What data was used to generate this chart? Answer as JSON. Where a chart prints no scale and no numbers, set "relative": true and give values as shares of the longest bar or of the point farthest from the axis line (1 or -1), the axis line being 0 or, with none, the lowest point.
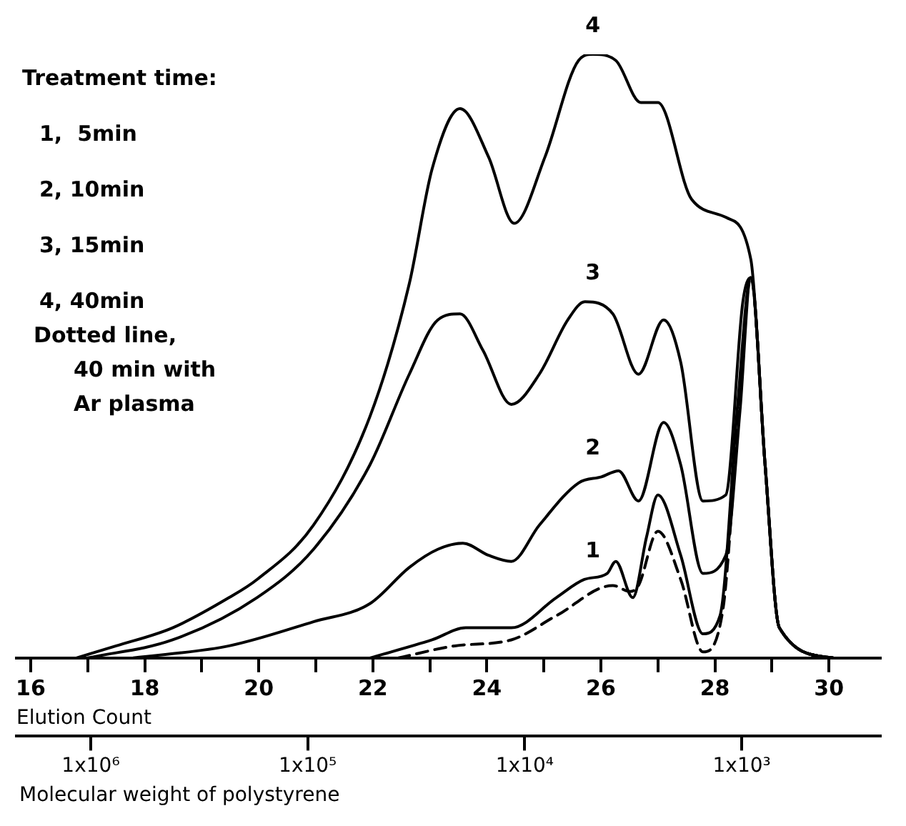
{
  "chart_data": {
    "type": "line",
    "relative": true,
    "xlabel": "Elution Count",
    "x2label": "Molecular weight of polystyrene",
    "xlim": [
      15.75,
      30.9
    ],
    "xticks": [
      16,
      {
        "value": 17,
        "label": null
      },
      18,
      {
        "value": 19,
        "label": null
      },
      20,
      {
        "value": 21,
        "label": null
      },
      22,
      {
        "value": 23,
        "label": null
      },
      24,
      {
        "value": 25,
        "label": null
      },
      26,
      {
        "value": 27,
        "label": null
      },
      28,
      {
        "value": 29,
        "label": null
      },
      30
    ],
    "x2lim": [
      2200000,
      230
    ],
    "log": "x2",
    "x2ticks": [
      {
        "value": 1000000,
        "label": "1x10⁶"
      },
      {
        "value": 100000,
        "label": "1x10⁵"
      },
      {
        "value": 10000,
        "label": "1x10⁴"
      },
      {
        "value": 1000,
        "label": "1x10³"
      }
    ],
    "annotations": [
      "Treatment time:",
      "1,  5min",
      "2, 10min",
      "3, 15min",
      "4, 40min",
      "Dotted line,",
      "40 min with",
      "Ar plasma"
    ],
    "grid": false,
    "legend": false,
    "marker": "none",
    "line_style": "solid",
    "series": [
      {
        "name": "1",
        "color": "#000000",
        "x": [
          21.95,
          23.04,
          23.63,
          24.43,
          25.22,
          25.71,
          26.11,
          26.26,
          26.56,
          26.8,
          27.0,
          27.4,
          27.79,
          28.09,
          28.39,
          28.63,
          28.88,
          29.13,
          30.07
        ],
        "values": [
          0,
          0.03,
          0.05,
          0.05,
          0.1,
          0.13,
          0.14,
          0.16,
          0.1,
          0.2,
          0.27,
          0.17,
          0.04,
          0.07,
          0.41,
          0.63,
          0.32,
          0.05,
          0
        ]
      },
      {
        "name": "2",
        "color": "#000000",
        "x": [
          17.8,
          19.48,
          20.96,
          21.95,
          22.64,
          23.14,
          23.58,
          24.03,
          24.43,
          24.92,
          25.61,
          26.01,
          26.31,
          26.66,
          27.1,
          27.4,
          27.79,
          28.19,
          28.44,
          28.63,
          28.88,
          29.13,
          30.07
        ],
        "values": [
          0,
          0.02,
          0.06,
          0.09,
          0.15,
          0.18,
          0.19,
          0.17,
          0.16,
          0.22,
          0.29,
          0.3,
          0.31,
          0.26,
          0.39,
          0.32,
          0.14,
          0.17,
          0.41,
          0.63,
          0.32,
          0.05,
          0
        ]
      },
      {
        "name": "3",
        "color": "#000000",
        "x": [
          17.0,
          18.49,
          19.97,
          20.96,
          21.95,
          22.64,
          23.14,
          23.53,
          23.93,
          24.43,
          24.92,
          25.42,
          25.72,
          26.21,
          26.66,
          27.1,
          27.4,
          27.79,
          28.19,
          28.49,
          28.63,
          28.88,
          29.13,
          30.07
        ],
        "values": [
          0,
          0.03,
          0.1,
          0.18,
          0.32,
          0.47,
          0.56,
          0.57,
          0.51,
          0.42,
          0.47,
          0.56,
          0.59,
          0.57,
          0.47,
          0.56,
          0.49,
          0.26,
          0.27,
          0.59,
          0.63,
          0.32,
          0.05,
          0
        ]
      },
      {
        "name": "4",
        "color": "#000000",
        "x": [
          16.8,
          17.5,
          18.49,
          19.48,
          19.97,
          20.96,
          21.95,
          22.64,
          23.04,
          23.53,
          24.03,
          24.48,
          25.02,
          25.61,
          25.86,
          26.26,
          26.7,
          27.0,
          27.59,
          28.19,
          28.63,
          28.88,
          29.13,
          30.07
        ],
        "values": [
          0,
          0.02,
          0.05,
          0.1,
          0.13,
          0.22,
          0.4,
          0.62,
          0.81,
          0.91,
          0.83,
          0.72,
          0.83,
          0.99,
          1.0,
          0.99,
          0.92,
          0.92,
          0.76,
          0.73,
          0.66,
          0.32,
          0.05,
          0
        ]
      },
      {
        "color": "#000000",
        "line_style": "dashed",
        "x": [
          22.45,
          23.44,
          24.43,
          25.22,
          26.21,
          26.51,
          26.66,
          27.0,
          27.4,
          27.79,
          28.14,
          28.39,
          28.63,
          28.88,
          29.13,
          30.07
        ],
        "values": [
          0,
          0.02,
          0.03,
          0.07,
          0.12,
          0.11,
          0.12,
          0.21,
          0.13,
          0.01,
          0.08,
          0.37,
          0.63,
          0.32,
          0.05,
          0
        ]
      }
    ]
  }
}
